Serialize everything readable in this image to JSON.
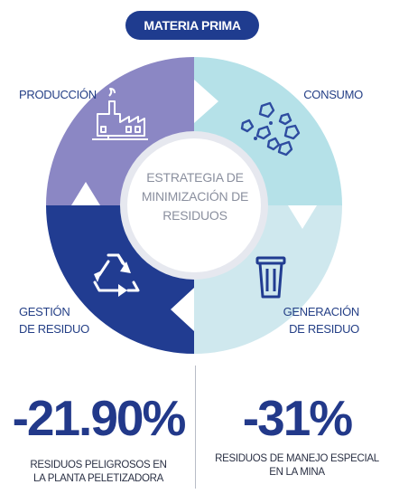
{
  "header": {
    "title": "MATERIA PRIMA"
  },
  "diagram": {
    "center": {
      "line1": "ESTRATEGIA DE",
      "line2": "MINIMIZACIÓN DE",
      "line3": "RESIDUOS"
    },
    "quadrants": [
      {
        "key": "produccion",
        "line1": "PRODUCCIÓN",
        "line2": "",
        "color": "#8b87c4",
        "icon": "factory-icon"
      },
      {
        "key": "consumo",
        "line1": "CONSUMO",
        "line2": "",
        "color": "#b5e1e8",
        "icon": "rocks-icon"
      },
      {
        "key": "generacion",
        "line1": "GENERACIÓN",
        "line2": "DE RESIDUO",
        "color": "#cfe8ee",
        "icon": "trash-bin-icon"
      },
      {
        "key": "gestion",
        "line1": "GESTIÓN",
        "line2": "DE RESIDUO",
        "color": "#213c91",
        "icon": "recycle-icon"
      }
    ]
  },
  "stats": [
    {
      "value": "-21.90%",
      "caption1": "RESIDUOS PELIGROSOS EN",
      "caption2": "LA PLANTA PELETIZADORA"
    },
    {
      "value": "-31%",
      "caption1": "RESIDUOS DE MANEJO ESPECIAL",
      "caption2": "EN LA MINA"
    }
  ]
}
